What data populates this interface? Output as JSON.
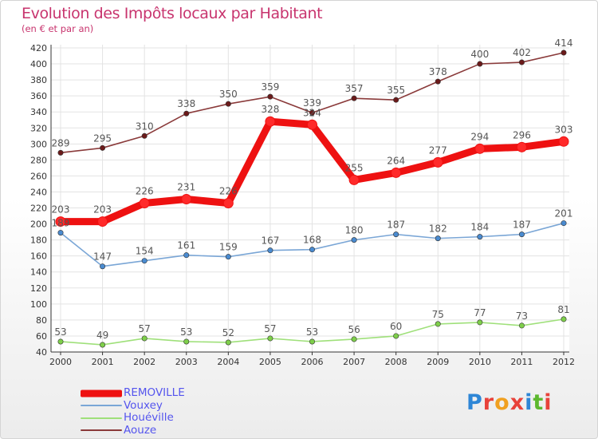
{
  "title": "Evolution des Impôts locaux par Habitant",
  "subtitle": "(en € et par an)",
  "logo": {
    "text": "Proxiti",
    "letter_colors": [
      "#2e86d6",
      "#e8423a",
      "#f0a020",
      "#e8423a",
      "#2e86d6",
      "#5cb82e",
      "#e8423a"
    ]
  },
  "chart_data": {
    "type": "line",
    "x": [
      "2000",
      "2001",
      "2002",
      "2003",
      "2004",
      "2005",
      "2006",
      "2007",
      "2008",
      "2009",
      "2010",
      "2011",
      "2012"
    ],
    "ylim": [
      40,
      420
    ],
    "yticks": [
      40,
      60,
      80,
      100,
      120,
      140,
      160,
      180,
      200,
      220,
      240,
      260,
      280,
      300,
      320,
      340,
      360,
      380,
      400,
      420
    ],
    "grid": true,
    "legend_position": "bottom-left",
    "series": [
      {
        "name": "REMOVILLE",
        "color": "#ee1111",
        "marker_color": "#ff2a2a",
        "label_color": "#555555",
        "emphasis": true,
        "values": [
          203,
          203,
          226,
          231,
          226,
          328,
          324,
          255,
          264,
          277,
          294,
          296,
          303
        ],
        "labels": [
          "203",
          "203",
          "226",
          "231",
          "226",
          "328",
          "324",
          "255",
          "264",
          "277",
          "294",
          "296",
          "303"
        ]
      },
      {
        "name": "Vouxey",
        "color": "#7aa6d6",
        "marker_color": "#4a8bd0",
        "label_color": "#555555",
        "emphasis": false,
        "values": [
          189,
          147,
          154,
          161,
          159,
          167,
          168,
          180,
          187,
          182,
          184,
          187,
          201
        ],
        "labels": [
          "189",
          "147",
          "154",
          "161",
          "159",
          "167",
          "168",
          "180",
          "187",
          "182",
          "184",
          "187",
          "201"
        ]
      },
      {
        "name": "Houéville",
        "color": "#9fe07a",
        "marker_color": "#7ecf4a",
        "label_color": "#555555",
        "emphasis": false,
        "values": [
          53,
          49,
          57,
          53,
          52,
          57,
          53,
          56,
          60,
          75,
          77,
          73,
          81
        ],
        "labels": [
          "53",
          "49",
          "57",
          "53",
          "52",
          "57",
          "53",
          "56",
          "60",
          "75",
          "77",
          "73",
          "81"
        ]
      },
      {
        "name": "Aouze",
        "color": "#8a3a3a",
        "marker_color": "#6b1a1a",
        "label_color": "#555555",
        "emphasis": false,
        "values": [
          289,
          295,
          310,
          338,
          350,
          359,
          339,
          357,
          355,
          378,
          400,
          402,
          414
        ],
        "labels": [
          "289",
          "295",
          "310",
          "338",
          "350",
          "359",
          "339",
          "357",
          "355",
          "378",
          "400",
          "402",
          "414"
        ]
      }
    ],
    "legend": [
      {
        "name": "REMOVILLE",
        "color": "#ee1111",
        "text_color": "#5555ee"
      },
      {
        "name": "Vouxey",
        "color": "#7aa6d6",
        "text_color": "#5555ee"
      },
      {
        "name": "Houéville",
        "color": "#9fe07a",
        "text_color": "#5555ee"
      },
      {
        "name": "Aouze",
        "color": "#8a3a3a",
        "text_color": "#5555ee"
      }
    ]
  }
}
